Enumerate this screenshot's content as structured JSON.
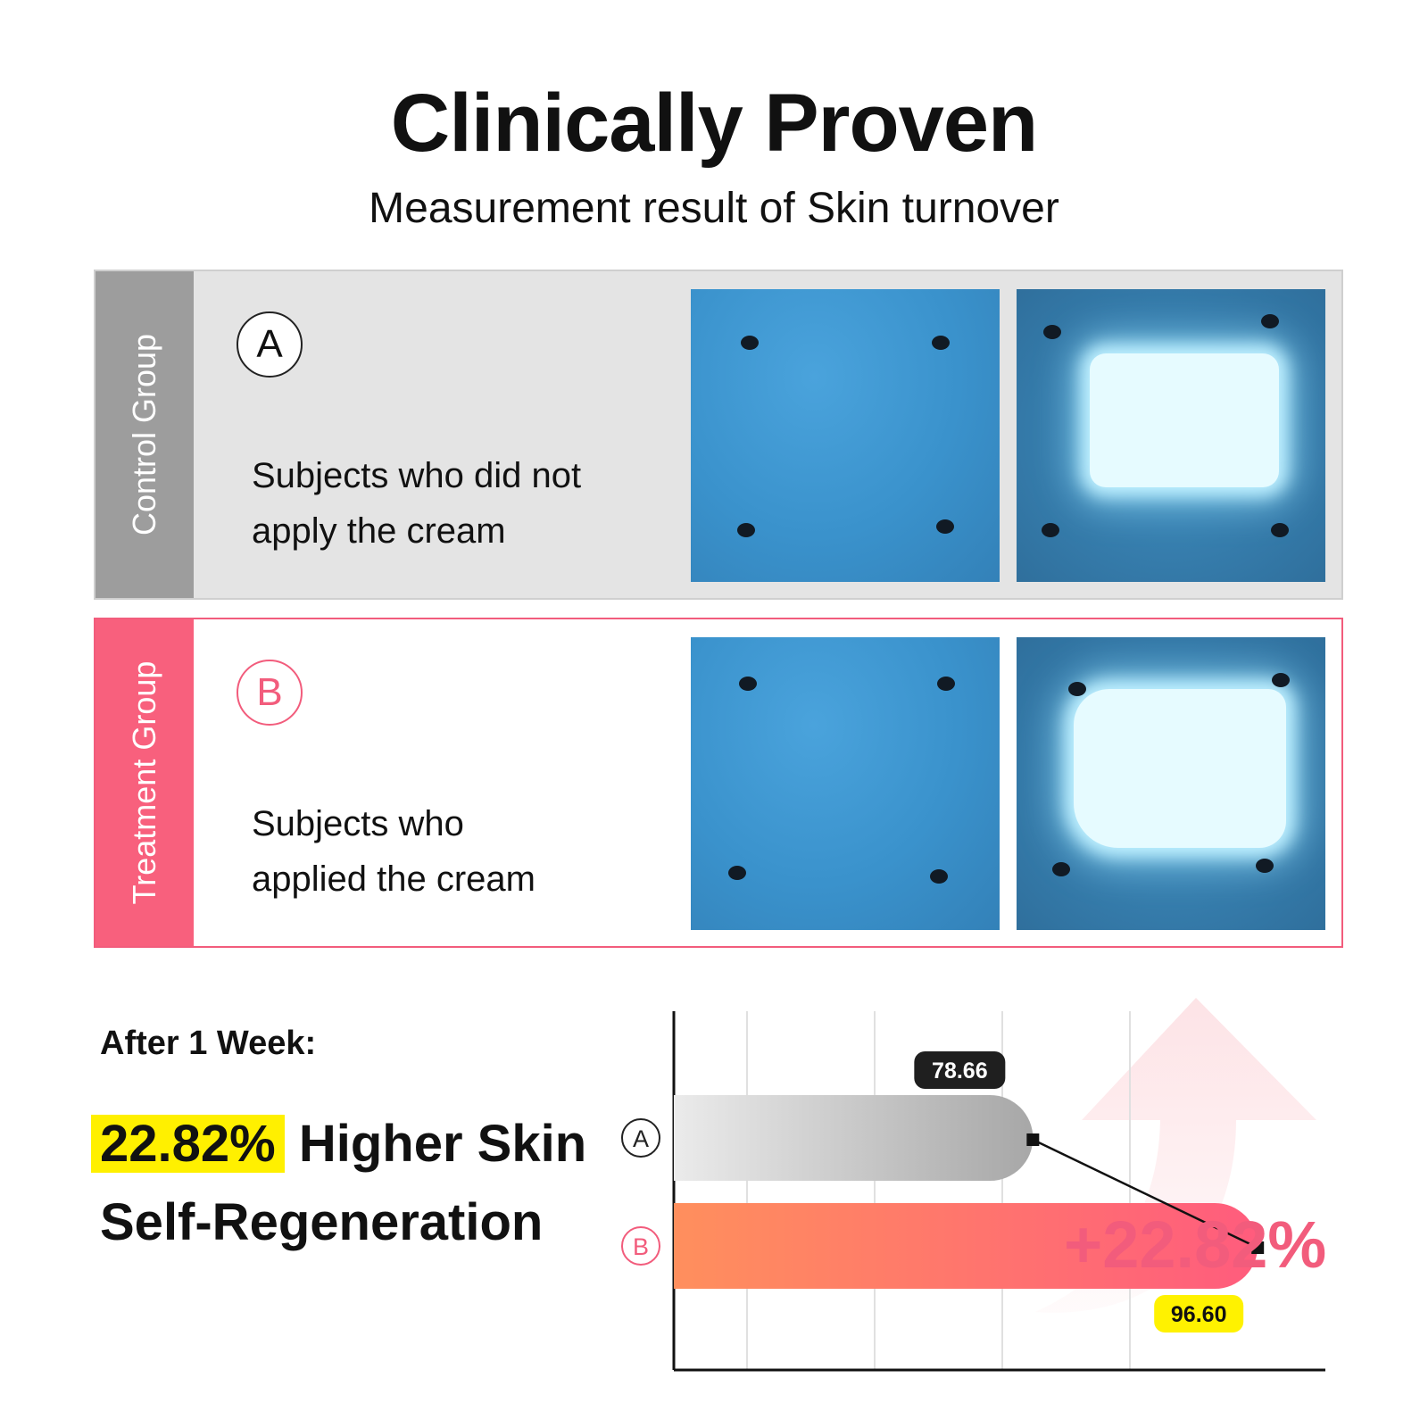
{
  "header": {
    "title": "Clinically Proven",
    "subtitle": "Measurement result of Skin turnover"
  },
  "groups": [
    {
      "side_label": "Control Group",
      "badge": "A",
      "lines": [
        "Subjects who did not",
        "apply the cream"
      ]
    },
    {
      "side_label": "Treatment Group",
      "badge": "B",
      "lines": [
        "Subjects who",
        "applied the cream"
      ]
    }
  ],
  "summary": {
    "period": "After 1 Week:",
    "highlight": "22.82%",
    "line1_rest": "Higher Skin",
    "line2": "Self-Regeneration"
  },
  "chart_data": {
    "type": "bar",
    "orientation": "horizontal",
    "categories": [
      "A",
      "B"
    ],
    "values": [
      78.66,
      96.6
    ],
    "value_labels": [
      "78.66",
      "96.60"
    ],
    "change_label": "+22.82%",
    "xlim": [
      50,
      102
    ],
    "grid": true,
    "colors": {
      "A": [
        "#ebebeb",
        "#a7a7a7"
      ],
      "B": [
        "#ff8f5d",
        "#ff5c7d"
      ],
      "accent": "#f25c7c",
      "label_a_bg": "#1f1f1f",
      "label_b_bg": "#fff200"
    }
  }
}
